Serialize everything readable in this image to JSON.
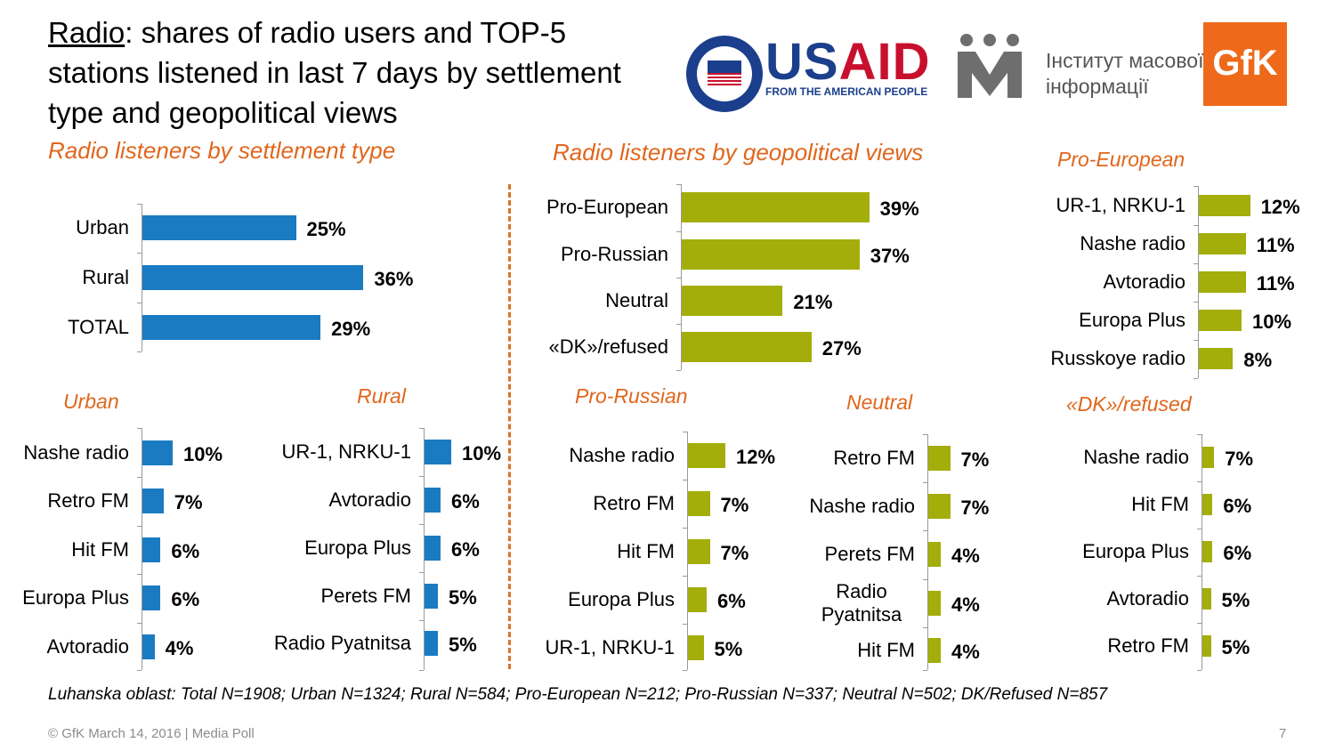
{
  "title": {
    "underlined": "Radio",
    "rest": ": shares of radio users and TOP-5 stations listened in last 7 days by settlement type and geopolitical views"
  },
  "logos": {
    "usaid_us": "US",
    "usaid_aid": "AID",
    "usaid_tagline": "FROM THE AMERICAN PEOPLE",
    "imi_line1": "Інститут масової",
    "imi_line2": "інформації",
    "gfk": "GfK"
  },
  "colors": {
    "blue": "#1a7bc2",
    "olive": "#a3ae0b",
    "orange": "#e0661c"
  },
  "chart_data": [
    {
      "id": "settlement",
      "type": "bar",
      "title": "Radio listeners by settlement type",
      "color": "#1a7bc2",
      "categories": [
        "Urban",
        "Rural",
        "TOTAL"
      ],
      "values": [
        25,
        36,
        29
      ],
      "labels": [
        "25%",
        "36%",
        "29%"
      ]
    },
    {
      "id": "urban",
      "type": "bar",
      "title": "Urban",
      "color": "#1a7bc2",
      "categories": [
        "Nashe radio",
        "Retro FM",
        "Hit FM",
        "Europa Plus",
        "Avtoradio"
      ],
      "values": [
        10,
        7,
        6,
        6,
        4
      ],
      "labels": [
        "10%",
        "7%",
        "6%",
        "6%",
        "4%"
      ]
    },
    {
      "id": "rural",
      "type": "bar",
      "title": "Rural",
      "color": "#1a7bc2",
      "categories": [
        "UR-1, NRKU-1",
        "Avtoradio",
        "Europa Plus",
        "Perets FM",
        "Radio Pyatnitsa"
      ],
      "values": [
        10,
        6,
        6,
        5,
        5
      ],
      "labels": [
        "10%",
        "6%",
        "6%",
        "5%",
        "5%"
      ]
    },
    {
      "id": "geo",
      "type": "bar",
      "title": "Radio listeners by geopolitical views",
      "color": "#a3ae0b",
      "categories": [
        "Pro-European",
        "Pro-Russian",
        "Neutral",
        "«DK»/refused"
      ],
      "values": [
        39,
        37,
        21,
        27
      ],
      "labels": [
        "39%",
        "37%",
        "21%",
        "27%"
      ]
    },
    {
      "id": "proeu",
      "type": "bar",
      "title": "Pro-European",
      "color": "#a3ae0b",
      "categories": [
        "UR-1, NRKU-1",
        "Nashe radio",
        "Avtoradio",
        "Europa Plus",
        "Russkoye radio"
      ],
      "values": [
        12,
        11,
        11,
        10,
        8
      ],
      "labels": [
        "12%",
        "11%",
        "11%",
        "10%",
        "8%"
      ]
    },
    {
      "id": "proru",
      "type": "bar",
      "title": "Pro-Russian",
      "color": "#a3ae0b",
      "categories": [
        "Nashe radio",
        "Retro FM",
        "Hit FM",
        "Europa Plus",
        "UR-1, NRKU-1"
      ],
      "values": [
        12,
        7,
        7,
        6,
        5
      ],
      "labels": [
        "12%",
        "7%",
        "7%",
        "6%",
        "5%"
      ]
    },
    {
      "id": "neutral",
      "type": "bar",
      "title": "Neutral",
      "color": "#a3ae0b",
      "categories": [
        "Retro FM",
        "Nashe radio",
        "Perets FM",
        "Radio Pyatnitsa",
        "Hit FM"
      ],
      "values": [
        7,
        7,
        4,
        4,
        4
      ],
      "labels": [
        "7%",
        "7%",
        "4%",
        "4%",
        "4%"
      ]
    },
    {
      "id": "dk",
      "type": "bar",
      "title": "«DK»/refused",
      "color": "#a3ae0b",
      "categories": [
        "Nashe radio",
        "Hit FM",
        "Europa Plus",
        "Avtoradio",
        "Retro FM"
      ],
      "values": [
        7,
        6,
        6,
        5,
        5
      ],
      "labels": [
        "7%",
        "6%",
        "6%",
        "5%",
        "5%"
      ]
    }
  ],
  "note": "Luhanska oblast: Total N=1908; Urban N=1324; Rural N=584; Pro-European N=212; Pro-Russian N=337; Neutral N=502; DK/Refused N=857",
  "footer": "© GfK March 14, 2016 | Media Poll",
  "page_number": "7"
}
